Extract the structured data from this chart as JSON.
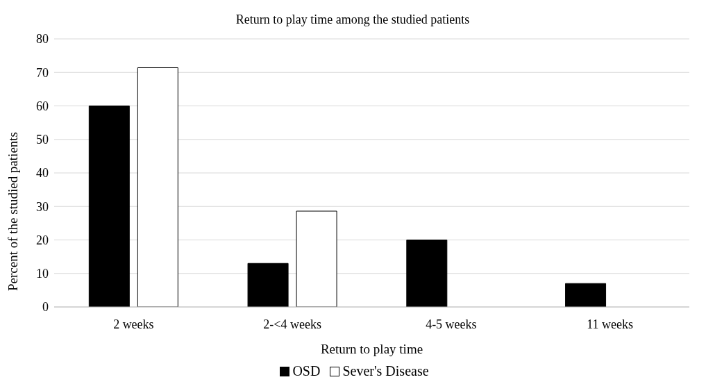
{
  "chart_data": {
    "type": "bar",
    "title": "Return to play time among the studied patients",
    "xlabel": "Return to play time",
    "ylabel": "Percent  of the studied patients",
    "categories": [
      "2 weeks",
      "2-<4 weeks",
      "4-5 weeks",
      "11 weeks"
    ],
    "series": [
      {
        "name": "OSD",
        "color": "#000000",
        "values": [
          60,
          13,
          20,
          7
        ]
      },
      {
        "name": "Sever's Disease",
        "color": "#ffffff",
        "values": [
          71.4,
          28.6,
          0,
          0
        ]
      }
    ],
    "ylim": [
      0,
      80
    ],
    "yticks": [
      0,
      10,
      20,
      30,
      40,
      50,
      60,
      70,
      80
    ],
    "grid": "y",
    "legend": "bottom"
  }
}
